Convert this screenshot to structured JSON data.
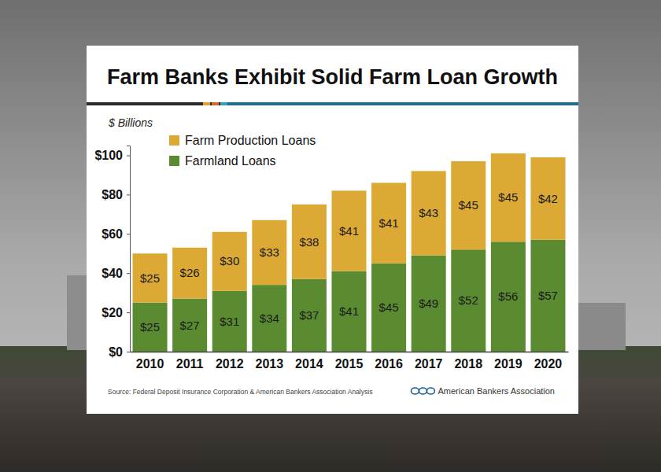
{
  "chart_data": {
    "type": "bar",
    "title": "Farm Banks Exhibit Solid Farm Loan Growth",
    "ylabel": "$ Billions",
    "annotations": [
      "Source: Federal Deposit Insurance Corporation & American Bankers Association Analysis",
      "American Bankers Association"
    ],
    "categories": [
      "2010",
      "2011",
      "2012",
      "2013",
      "2014",
      "2015",
      "2016",
      "2017",
      "2018",
      "2019",
      "2020"
    ],
    "series": [
      {
        "name": "Farmland Loans",
        "color": "#5b8b31",
        "values": [
          25,
          27,
          31,
          34,
          37,
          41,
          45,
          49,
          52,
          56,
          57
        ],
        "value_labels": [
          "$25",
          "$27",
          "$31",
          "$34",
          "$37",
          "$41",
          "$45",
          "$49",
          "$52",
          "$56",
          "$57"
        ]
      },
      {
        "name": "Farm Production Loans",
        "color": "#dba934",
        "values": [
          25,
          26,
          30,
          33,
          38,
          41,
          41,
          43,
          45,
          45,
          42
        ],
        "value_labels": [
          "$25",
          "$26",
          "$30",
          "$33",
          "$38",
          "$41",
          "$41",
          "$43",
          "$45",
          "$45",
          "$42"
        ]
      }
    ],
    "stacked": true,
    "data_labels": true,
    "legend": "upper left",
    "grid": false,
    "ylim": [
      0,
      105
    ],
    "yticks": [
      {
        "value": 0,
        "label": "$0"
      },
      {
        "value": 20,
        "label": "$20"
      },
      {
        "value": 40,
        "label": "$40"
      },
      {
        "value": 60,
        "label": "$60"
      },
      {
        "value": 80,
        "label": "$80"
      },
      {
        "value": 100,
        "label": "$100"
      }
    ]
  }
}
